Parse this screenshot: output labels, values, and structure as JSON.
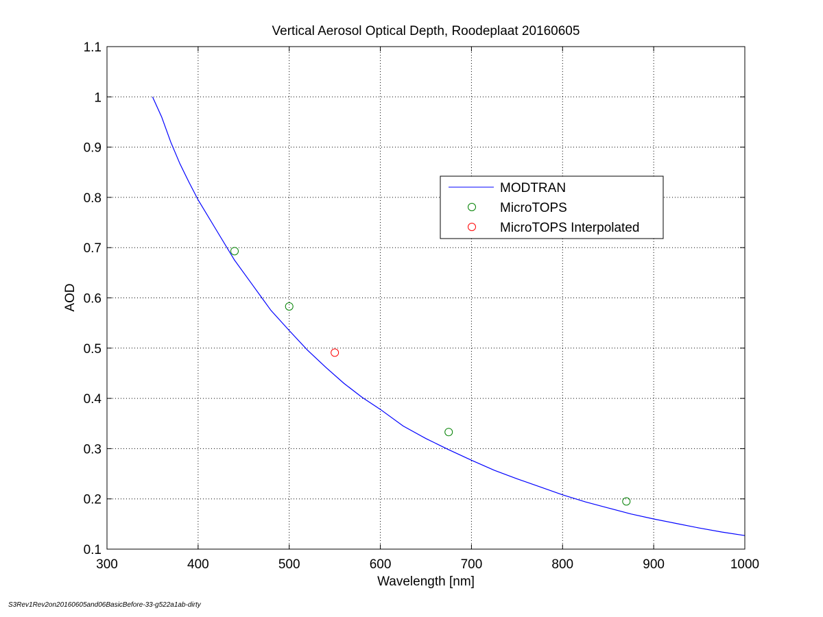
{
  "chart_data": {
    "type": "line",
    "title": "Vertical Aerosol Optical Depth, Roodeplaat 20160605",
    "xlabel": "Wavelength [nm]",
    "ylabel": "AOD",
    "xlim": [
      300,
      1000
    ],
    "ylim": [
      0.1,
      1.1
    ],
    "xticks": [
      "300",
      "400",
      "500",
      "600",
      "700",
      "800",
      "900",
      "1000"
    ],
    "yticks": [
      "0.1",
      "0.2",
      "0.3",
      "0.4",
      "0.5",
      "0.6",
      "0.7",
      "0.8",
      "0.9",
      "1",
      "1.1"
    ],
    "grid": true,
    "legend_position": "upper-right-inner",
    "series": [
      {
        "name": "MODTRAN",
        "kind": "line",
        "color": "#0000ff",
        "x": [
          350,
          360,
          370,
          380,
          390,
          400,
          420,
          440,
          460,
          480,
          500,
          520,
          540,
          560,
          580,
          600,
          625,
          650,
          675,
          700,
          725,
          750,
          775,
          800,
          825,
          850,
          875,
          900,
          925,
          950,
          975,
          1000
        ],
        "y": [
          1.0,
          0.96,
          0.91,
          0.867,
          0.83,
          0.795,
          0.735,
          0.675,
          0.625,
          0.575,
          0.535,
          0.496,
          0.462,
          0.43,
          0.402,
          0.378,
          0.345,
          0.32,
          0.298,
          0.277,
          0.257,
          0.24,
          0.224,
          0.208,
          0.194,
          0.182,
          0.17,
          0.16,
          0.151,
          0.142,
          0.134,
          0.127
        ]
      },
      {
        "name": "MicroTOPS",
        "kind": "marker",
        "color": "#008000",
        "x": [
          440,
          500,
          675,
          870
        ],
        "y": [
          0.693,
          0.583,
          0.333,
          0.195
        ]
      },
      {
        "name": "MicroTOPS Interpolated",
        "kind": "marker",
        "color": "#ff0000",
        "x": [
          550
        ],
        "y": [
          0.491
        ]
      }
    ]
  },
  "footer_text": "S3Rev1Rev2on20160605and06BasicBefore-33-g522a1ab-dirty"
}
